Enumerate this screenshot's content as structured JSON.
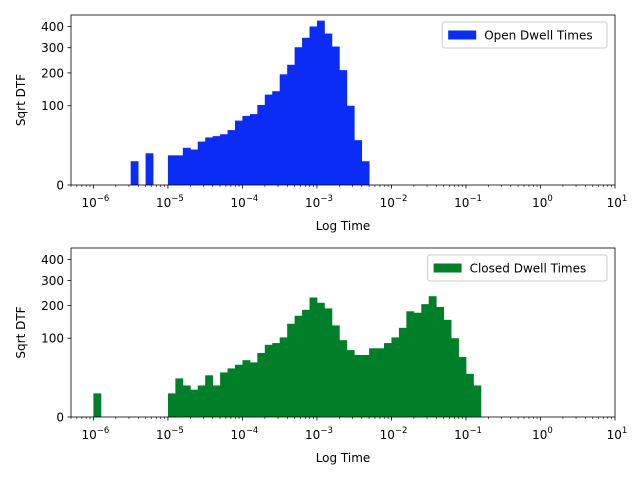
{
  "chart_data": [
    {
      "type": "bar",
      "xscale": "log",
      "yscale": "sqrt",
      "xlabel": "Log Time",
      "ylabel": "Sqrt DTF",
      "xlim": [
        5e-07,
        10
      ],
      "ylim": [
        0,
        460
      ],
      "xticks": [
        {
          "value": 1e-06,
          "base": "10",
          "exp": "−6"
        },
        {
          "value": 1e-05,
          "base": "10",
          "exp": "−5"
        },
        {
          "value": 0.0001,
          "base": "10",
          "exp": "−4"
        },
        {
          "value": 0.001,
          "base": "10",
          "exp": "−3"
        },
        {
          "value": 0.01,
          "base": "10",
          "exp": "−2"
        },
        {
          "value": 0.1,
          "base": "10",
          "exp": "−1"
        },
        {
          "value": 1,
          "base": "10",
          "exp": "0"
        },
        {
          "value": 10,
          "base": "10",
          "exp": "1"
        }
      ],
      "yticks": [
        0,
        100,
        200,
        300,
        400
      ],
      "legend": {
        "label": "Open Dwell Times",
        "position": "upper right"
      },
      "series": [
        {
          "name": "Open Dwell Times",
          "color": "#0a2cf5",
          "bin_log10_start": -5.5,
          "bin_log10_width": 0.1,
          "values": [
            9,
            0,
            16,
            0,
            0,
            14,
            14,
            22,
            20,
            30,
            36,
            38,
            41,
            48,
            66,
            76,
            80,
            102,
            130,
            140,
            195,
            230,
            302,
            345,
            400,
            430,
            365,
            305,
            210,
            100,
            32,
            9
          ]
        }
      ]
    },
    {
      "type": "bar",
      "xscale": "log",
      "yscale": "sqrt",
      "xlabel": "Log Time",
      "ylabel": "Sqrt DTF",
      "xlim": [
        5e-07,
        10
      ],
      "ylim": [
        0,
        460
      ],
      "xticks": [
        {
          "value": 1e-06,
          "base": "10",
          "exp": "−6"
        },
        {
          "value": 1e-05,
          "base": "10",
          "exp": "−5"
        },
        {
          "value": 0.0001,
          "base": "10",
          "exp": "−4"
        },
        {
          "value": 0.001,
          "base": "10",
          "exp": "−3"
        },
        {
          "value": 0.01,
          "base": "10",
          "exp": "−2"
        },
        {
          "value": 0.1,
          "base": "10",
          "exp": "−1"
        },
        {
          "value": 1,
          "base": "10",
          "exp": "0"
        },
        {
          "value": 10,
          "base": "10",
          "exp": "1"
        }
      ],
      "yticks": [
        0,
        100,
        200,
        300,
        400
      ],
      "legend": {
        "label": "Closed Dwell Times",
        "position": "upper right"
      },
      "series": [
        {
          "name": "Closed Dwell Times",
          "color": "#007f29",
          "bin_log10_start": -6.0,
          "bin_log10_width": 0.1,
          "values": [
            9,
            0,
            0,
            0,
            0,
            0,
            0,
            0,
            0,
            0,
            9,
            24,
            16,
            12,
            16,
            28,
            16,
            32,
            38,
            44,
            52,
            48,
            66,
            84,
            88,
            102,
            140,
            165,
            185,
            230,
            210,
            190,
            135,
            95,
            72,
            62,
            62,
            76,
            76,
            88,
            102,
            128,
            180,
            175,
            205,
            235,
            195,
            152,
            100,
            58,
            30,
            16
          ]
        }
      ]
    }
  ]
}
